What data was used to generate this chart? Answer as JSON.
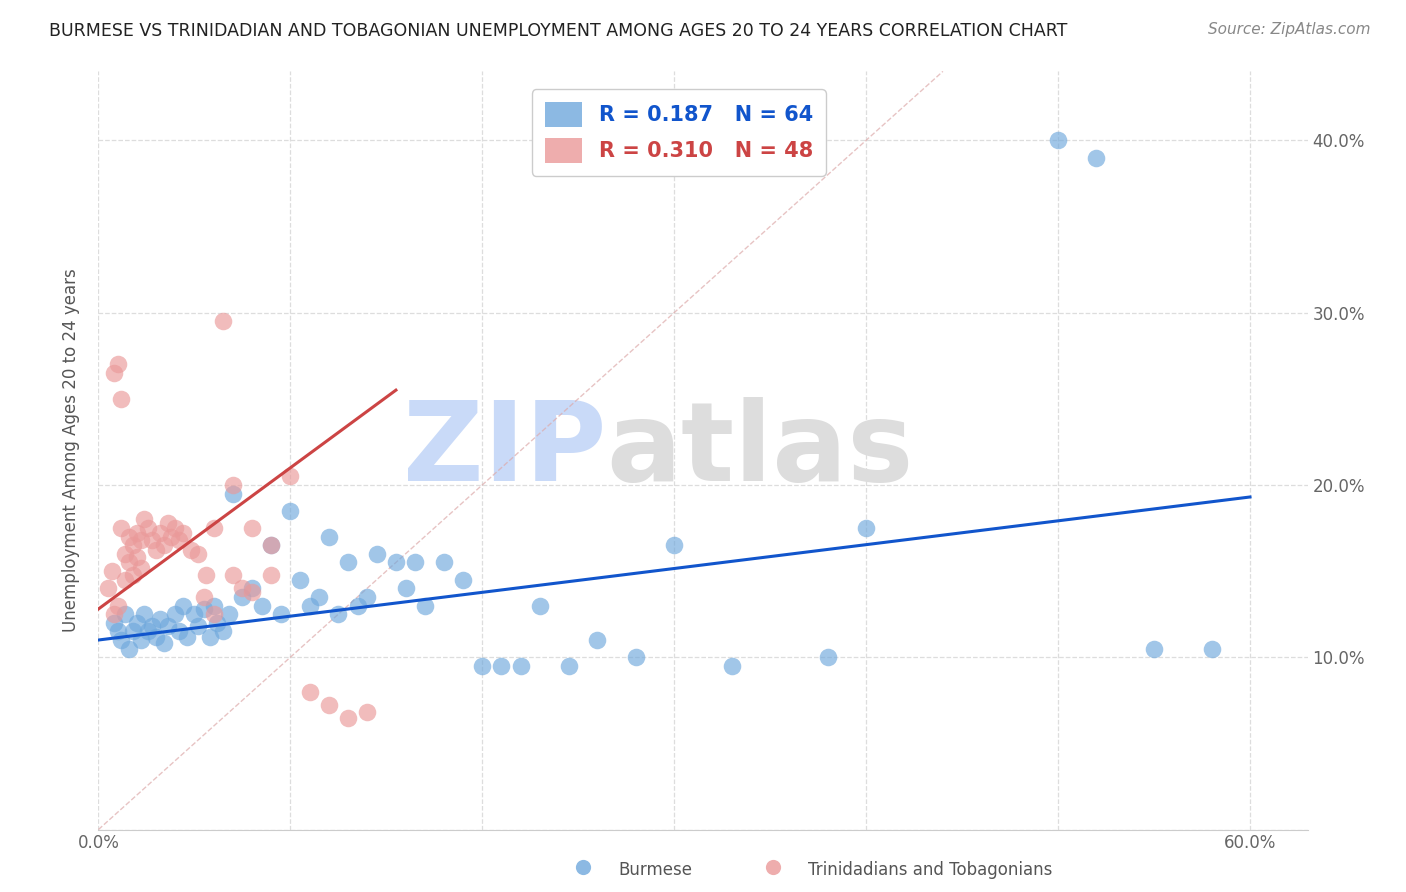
{
  "title": "BURMESE VS TRINIDADIAN AND TOBAGONIAN UNEMPLOYMENT AMONG AGES 20 TO 24 YEARS CORRELATION CHART",
  "source": "Source: ZipAtlas.com",
  "ylabel": "Unemployment Among Ages 20 to 24 years",
  "xlim": [
    0.0,
    0.63
  ],
  "ylim": [
    0.0,
    0.44
  ],
  "blue_color": "#6fa8dc",
  "pink_color": "#ea9999",
  "blue_line_color": "#1155cc",
  "pink_line_color": "#cc4444",
  "legend_blue_R": "0.187",
  "legend_blue_N": "64",
  "legend_pink_R": "0.310",
  "legend_pink_N": "48",
  "watermark": "ZIPatlas",
  "watermark_color": "#c9daf8",
  "legend_label_blue": "Burmese",
  "legend_label_pink": "Trinidadians and Tobagonians",
  "blue_scatter_x": [
    0.008,
    0.01,
    0.012,
    0.014,
    0.016,
    0.018,
    0.02,
    0.022,
    0.024,
    0.026,
    0.028,
    0.03,
    0.032,
    0.034,
    0.036,
    0.04,
    0.042,
    0.044,
    0.046,
    0.05,
    0.052,
    0.055,
    0.058,
    0.06,
    0.062,
    0.065,
    0.068,
    0.07,
    0.075,
    0.08,
    0.085,
    0.09,
    0.095,
    0.1,
    0.105,
    0.11,
    0.115,
    0.12,
    0.125,
    0.13,
    0.135,
    0.14,
    0.145,
    0.155,
    0.16,
    0.165,
    0.17,
    0.18,
    0.19,
    0.2,
    0.21,
    0.22,
    0.23,
    0.245,
    0.26,
    0.28,
    0.3,
    0.33,
    0.38,
    0.4,
    0.5,
    0.52,
    0.55,
    0.58
  ],
  "blue_scatter_y": [
    0.12,
    0.115,
    0.11,
    0.125,
    0.105,
    0.115,
    0.12,
    0.11,
    0.125,
    0.115,
    0.118,
    0.112,
    0.122,
    0.108,
    0.118,
    0.125,
    0.115,
    0.13,
    0.112,
    0.125,
    0.118,
    0.128,
    0.112,
    0.13,
    0.12,
    0.115,
    0.125,
    0.195,
    0.135,
    0.14,
    0.13,
    0.165,
    0.125,
    0.185,
    0.145,
    0.13,
    0.135,
    0.17,
    0.125,
    0.155,
    0.13,
    0.135,
    0.16,
    0.155,
    0.14,
    0.155,
    0.13,
    0.155,
    0.145,
    0.095,
    0.095,
    0.095,
    0.13,
    0.095,
    0.11,
    0.1,
    0.165,
    0.095,
    0.1,
    0.175,
    0.4,
    0.39,
    0.105,
    0.105
  ],
  "pink_scatter_x": [
    0.005,
    0.007,
    0.008,
    0.008,
    0.01,
    0.01,
    0.012,
    0.012,
    0.014,
    0.014,
    0.016,
    0.016,
    0.018,
    0.018,
    0.02,
    0.02,
    0.022,
    0.022,
    0.024,
    0.026,
    0.028,
    0.03,
    0.032,
    0.034,
    0.036,
    0.038,
    0.04,
    0.042,
    0.044,
    0.048,
    0.052,
    0.056,
    0.06,
    0.065,
    0.07,
    0.08,
    0.09,
    0.1,
    0.11,
    0.12,
    0.13,
    0.14,
    0.055,
    0.06,
    0.07,
    0.075,
    0.08,
    0.09
  ],
  "pink_scatter_y": [
    0.14,
    0.15,
    0.125,
    0.265,
    0.27,
    0.13,
    0.25,
    0.175,
    0.16,
    0.145,
    0.17,
    0.155,
    0.165,
    0.148,
    0.172,
    0.158,
    0.168,
    0.152,
    0.18,
    0.175,
    0.168,
    0.162,
    0.172,
    0.165,
    0.178,
    0.17,
    0.175,
    0.168,
    0.172,
    0.162,
    0.16,
    0.148,
    0.175,
    0.295,
    0.2,
    0.175,
    0.165,
    0.205,
    0.08,
    0.072,
    0.065,
    0.068,
    0.135,
    0.125,
    0.148,
    0.14,
    0.138,
    0.148
  ],
  "blue_line_x": [
    0.0,
    0.6
  ],
  "blue_line_y": [
    0.11,
    0.193
  ],
  "pink_line_x": [
    0.0,
    0.155
  ],
  "pink_line_y": [
    0.128,
    0.255
  ],
  "ref_line_x": [
    0.0,
    0.44
  ],
  "ref_line_y": [
    0.0,
    0.44
  ],
  "background_color": "#ffffff",
  "grid_color": "#dddddd"
}
